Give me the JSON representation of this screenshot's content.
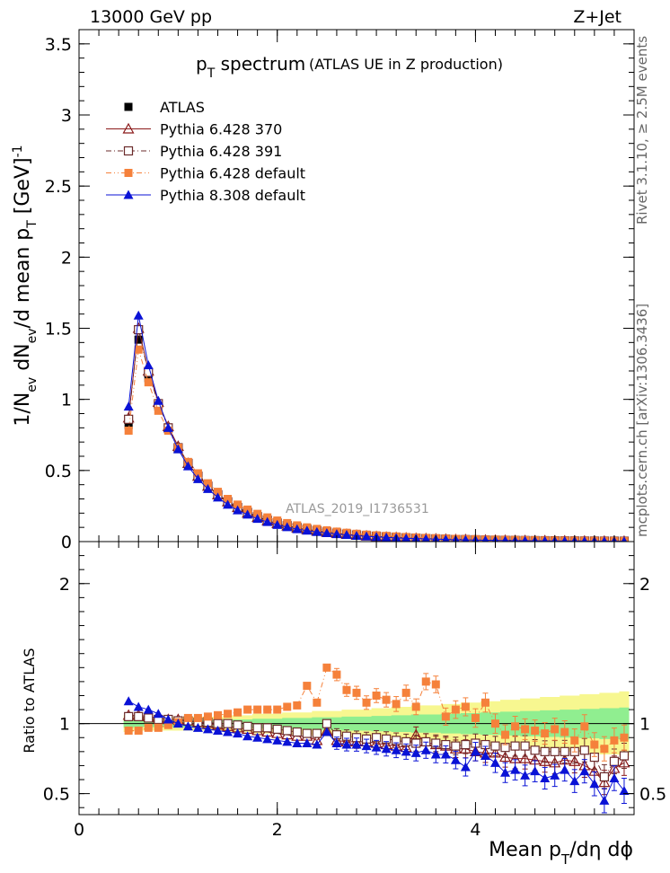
{
  "header": {
    "left": "13000 GeV pp",
    "right": "Z+Jet"
  },
  "side_labels": {
    "rivet": "Rivet 3.1.10, ≥ 2.5M events",
    "mcplots": "mcplots.cern.ch [arXiv:1306.3436]"
  },
  "watermark": "ATLAS_2019_I1736531",
  "colors": {
    "atlas": "#000000",
    "p6_370": "#8b1a1a",
    "p6_391": "#6b2b2b",
    "p6_default": "#f5813b",
    "p8_default": "#0a12d6",
    "band_outer": "#f7f790",
    "band_inner": "#90ee90"
  },
  "chart_data": [
    {
      "type": "scatter",
      "title": "p_T spectrum",
      "title_main": "p",
      "title_sub": "T",
      "title_rest": " spectrum",
      "title_note": "(ATLAS UE in Z production)",
      "ylabel": "1/N_ev dN_ev/d mean p_T [GeV]^-1",
      "xlim": [
        0,
        5.6
      ],
      "ylim": [
        0,
        3.6
      ],
      "yticks": [
        0,
        0.5,
        1,
        1.5,
        2,
        2.5,
        3,
        3.5
      ],
      "ytick_labels": [
        "0",
        "0.5",
        "1",
        "1.5",
        "2",
        "2.5",
        "3",
        "3.5"
      ],
      "x": [
        0.5,
        0.6,
        0.7,
        0.8,
        0.9,
        1.0,
        1.1,
        1.2,
        1.3,
        1.4,
        1.5,
        1.6,
        1.7,
        1.8,
        1.9,
        2.0,
        2.1,
        2.2,
        2.3,
        2.4,
        2.5,
        2.6,
        2.7,
        2.8,
        2.9,
        3.0,
        3.1,
        3.2,
        3.3,
        3.4,
        3.5,
        3.6,
        3.7,
        3.8,
        3.9,
        4.0,
        4.1,
        4.2,
        4.3,
        4.4,
        4.5,
        4.6,
        4.7,
        4.8,
        4.9,
        5.0,
        5.1,
        5.2,
        5.3,
        5.4,
        5.5
      ],
      "series": [
        {
          "name": "ATLAS",
          "marker": "square-filled",
          "line": "none",
          "color": "#000000",
          "values": [
            0.82,
            1.42,
            1.15,
            0.95,
            0.79,
            0.65,
            0.54,
            0.46,
            0.39,
            0.33,
            0.28,
            0.24,
            0.21,
            0.18,
            0.155,
            0.135,
            0.118,
            0.104,
            0.092,
            0.081,
            0.072,
            0.064,
            0.057,
            0.051,
            0.046,
            0.041,
            0.037,
            0.033,
            0.03,
            0.027,
            0.024,
            0.022,
            0.02,
            0.018,
            0.016,
            0.015,
            0.013,
            0.012,
            0.011,
            0.01,
            0.009,
            0.0085,
            0.0078,
            0.0071,
            0.0065,
            0.006,
            0.0055,
            0.005,
            0.0046,
            0.0042,
            0.0038
          ]
        },
        {
          "name": "Pythia 6.428 370",
          "marker": "triangle-open",
          "line": "solid",
          "color": "#8b1a1a",
          "values": [
            0.87,
            1.5,
            1.2,
            0.98,
            0.81,
            0.67,
            0.55,
            0.46,
            0.39,
            0.33,
            0.28,
            0.24,
            0.2,
            0.17,
            0.147,
            0.127,
            0.11,
            0.096,
            0.084,
            0.074,
            0.066,
            0.058,
            0.051,
            0.045,
            0.04,
            0.036,
            0.032,
            0.029,
            0.026,
            0.023,
            0.021,
            0.019,
            0.017,
            0.015,
            0.014,
            0.012,
            0.011,
            0.01,
            0.009,
            0.008,
            0.0072,
            0.0066,
            0.006,
            0.0054,
            0.0049,
            0.0045,
            0.004,
            0.0036,
            0.0033,
            0.003,
            0.0027
          ]
        },
        {
          "name": "Pythia 6.428 391",
          "marker": "square-open",
          "line": "dashdot",
          "color": "#6b2b2b",
          "values": [
            0.86,
            1.49,
            1.19,
            0.97,
            0.8,
            0.66,
            0.55,
            0.46,
            0.39,
            0.33,
            0.28,
            0.24,
            0.205,
            0.175,
            0.15,
            0.13,
            0.112,
            0.098,
            0.086,
            0.076,
            0.067,
            0.059,
            0.052,
            0.046,
            0.041,
            0.037,
            0.033,
            0.029,
            0.026,
            0.024,
            0.021,
            0.019,
            0.017,
            0.015,
            0.014,
            0.013,
            0.011,
            0.01,
            0.0093,
            0.0084,
            0.0076,
            0.0069,
            0.0063,
            0.0057,
            0.0052,
            0.0048,
            0.0043,
            0.0039,
            0.0035,
            0.0032,
            0.0029
          ]
        },
        {
          "name": "Pythia 6.428 default",
          "marker": "square-filled",
          "line": "dashdotdot",
          "color": "#f5813b",
          "values": [
            0.78,
            1.35,
            1.12,
            0.92,
            0.78,
            0.66,
            0.56,
            0.48,
            0.41,
            0.35,
            0.3,
            0.26,
            0.225,
            0.195,
            0.17,
            0.148,
            0.13,
            0.114,
            0.1,
            0.089,
            0.079,
            0.07,
            0.062,
            0.055,
            0.049,
            0.044,
            0.04,
            0.036,
            0.032,
            0.029,
            0.026,
            0.024,
            0.021,
            0.019,
            0.017,
            0.016,
            0.014,
            0.013,
            0.012,
            0.011,
            0.0098,
            0.0089,
            0.0081,
            0.0073,
            0.0066,
            0.006,
            0.0055,
            0.005,
            0.0045,
            0.0041,
            0.0037
          ]
        },
        {
          "name": "Pythia 8.308 default",
          "marker": "triangle-filled",
          "line": "solid",
          "color": "#0a12d6",
          "values": [
            0.95,
            1.59,
            1.24,
            0.99,
            0.8,
            0.65,
            0.53,
            0.44,
            0.37,
            0.31,
            0.26,
            0.22,
            0.19,
            0.16,
            0.138,
            0.118,
            0.102,
            0.088,
            0.077,
            0.068,
            0.06,
            0.053,
            0.047,
            0.041,
            0.037,
            0.033,
            0.029,
            0.026,
            0.023,
            0.021,
            0.019,
            0.017,
            0.015,
            0.013,
            0.012,
            0.011,
            0.0095,
            0.0085,
            0.0075,
            0.0067,
            0.006,
            0.0054,
            0.0049,
            0.0044,
            0.004,
            0.0036,
            0.0032,
            0.0029,
            0.0026,
            0.0023,
            0.0021
          ]
        }
      ]
    },
    {
      "type": "scatter",
      "ylabel": "Ratio to ATLAS",
      "xlabel": "Mean p_T/dη dϕ",
      "xlabel_main": "Mean p",
      "xlabel_sub": "T",
      "xlabel_rest": "/dη dϕ",
      "xlim": [
        0,
        5.6
      ],
      "ylim": [
        0.35,
        2.3
      ],
      "xticks": [
        0,
        2,
        4
      ],
      "xtick_labels": [
        "0",
        "2",
        "4"
      ],
      "yticks": [
        0.5,
        1,
        2
      ],
      "ytick_labels": [
        "0.5",
        "1",
        "2"
      ],
      "x": [
        0.5,
        0.6,
        0.7,
        0.8,
        0.9,
        1.0,
        1.1,
        1.2,
        1.3,
        1.4,
        1.5,
        1.6,
        1.7,
        1.8,
        1.9,
        2.0,
        2.1,
        2.2,
        2.3,
        2.4,
        2.5,
        2.6,
        2.7,
        2.8,
        2.9,
        3.0,
        3.1,
        3.2,
        3.3,
        3.4,
        3.5,
        3.6,
        3.7,
        3.8,
        3.9,
        4.0,
        4.1,
        4.2,
        4.3,
        4.4,
        4.5,
        4.6,
        4.7,
        4.8,
        4.9,
        5.0,
        5.1,
        5.2,
        5.3,
        5.4,
        5.5
      ],
      "band_outer_halfwidth": [
        0.06,
        0.05,
        0.05,
        0.05,
        0.05,
        0.05,
        0.05,
        0.05,
        0.05,
        0.05,
        0.06,
        0.06,
        0.06,
        0.07,
        0.07,
        0.07,
        0.08,
        0.08,
        0.08,
        0.09,
        0.09,
        0.09,
        0.1,
        0.1,
        0.1,
        0.11,
        0.11,
        0.12,
        0.12,
        0.13,
        0.13,
        0.13,
        0.14,
        0.14,
        0.15,
        0.15,
        0.16,
        0.16,
        0.17,
        0.17,
        0.18,
        0.18,
        0.19,
        0.19,
        0.2,
        0.2,
        0.21,
        0.21,
        0.22,
        0.22,
        0.23
      ],
      "band_inner_halfwidth": [
        0.03,
        0.025,
        0.025,
        0.025,
        0.025,
        0.025,
        0.025,
        0.025,
        0.025,
        0.025,
        0.03,
        0.03,
        0.03,
        0.035,
        0.035,
        0.035,
        0.04,
        0.04,
        0.04,
        0.045,
        0.045,
        0.045,
        0.05,
        0.05,
        0.05,
        0.055,
        0.055,
        0.06,
        0.06,
        0.065,
        0.065,
        0.065,
        0.07,
        0.07,
        0.075,
        0.075,
        0.08,
        0.08,
        0.085,
        0.085,
        0.09,
        0.09,
        0.095,
        0.095,
        0.1,
        0.1,
        0.105,
        0.105,
        0.11,
        0.11,
        0.115
      ],
      "series": [
        {
          "name": "Pythia 6.428 370",
          "marker": "triangle-open",
          "line": "solid",
          "color": "#8b1a1a",
          "values": [
            1.06,
            1.06,
            1.05,
            1.04,
            1.03,
            1.03,
            1.02,
            1.01,
            1.0,
            0.99,
            0.98,
            0.97,
            0.96,
            0.95,
            0.94,
            0.93,
            0.92,
            0.91,
            0.91,
            0.88,
            0.95,
            0.88,
            0.87,
            0.87,
            0.87,
            0.86,
            0.85,
            0.84,
            0.83,
            0.92,
            0.87,
            0.85,
            0.84,
            0.82,
            0.82,
            0.8,
            0.79,
            0.79,
            0.76,
            0.75,
            0.75,
            0.74,
            0.73,
            0.72,
            0.74,
            0.73,
            0.7,
            0.66,
            0.58,
            0.68,
            0.72
          ]
        },
        {
          "name": "Pythia 6.428 391",
          "marker": "square-open",
          "line": "dashdot",
          "color": "#6b2b2b",
          "values": [
            1.05,
            1.05,
            1.04,
            1.03,
            1.03,
            1.02,
            1.02,
            1.01,
            1.01,
            1.0,
            1.0,
            0.99,
            0.98,
            0.97,
            0.97,
            0.96,
            0.95,
            0.94,
            0.93,
            0.93,
            1.0,
            0.92,
            0.91,
            0.9,
            0.89,
            0.9,
            0.89,
            0.88,
            0.87,
            0.86,
            0.87,
            0.86,
            0.85,
            0.84,
            0.85,
            0.86,
            0.85,
            0.84,
            0.83,
            0.84,
            0.84,
            0.81,
            0.8,
            0.8,
            0.8,
            0.8,
            0.81,
            0.76,
            0.62,
            0.73,
            0.77
          ]
        },
        {
          "name": "Pythia 6.428 default",
          "marker": "square-filled",
          "line": "dashdotdot",
          "color": "#f5813b",
          "values": [
            0.95,
            0.95,
            0.97,
            0.97,
            0.99,
            1.01,
            1.04,
            1.04,
            1.05,
            1.06,
            1.07,
            1.08,
            1.1,
            1.1,
            1.1,
            1.1,
            1.12,
            1.13,
            1.27,
            1.15,
            1.4,
            1.35,
            1.24,
            1.22,
            1.15,
            1.2,
            1.17,
            1.14,
            1.22,
            1.12,
            1.3,
            1.28,
            1.05,
            1.1,
            1.12,
            1.04,
            1.15,
            1.0,
            0.92,
            0.98,
            0.96,
            0.95,
            0.93,
            0.96,
            0.94,
            0.88,
            0.98,
            0.85,
            0.82,
            0.88,
            0.9
          ]
        },
        {
          "name": "Pythia 8.308 default",
          "marker": "triangle-filled",
          "line": "solid",
          "color": "#0a12d6",
          "values": [
            1.16,
            1.12,
            1.1,
            1.07,
            1.03,
            1.0,
            0.98,
            0.97,
            0.96,
            0.95,
            0.94,
            0.93,
            0.91,
            0.9,
            0.89,
            0.88,
            0.87,
            0.86,
            0.86,
            0.85,
            0.94,
            0.86,
            0.85,
            0.85,
            0.84,
            0.83,
            0.82,
            0.81,
            0.8,
            0.79,
            0.81,
            0.78,
            0.78,
            0.74,
            0.69,
            0.8,
            0.77,
            0.72,
            0.65,
            0.67,
            0.63,
            0.66,
            0.61,
            0.63,
            0.67,
            0.59,
            0.66,
            0.57,
            0.45,
            0.61,
            0.52
          ]
        }
      ]
    }
  ]
}
